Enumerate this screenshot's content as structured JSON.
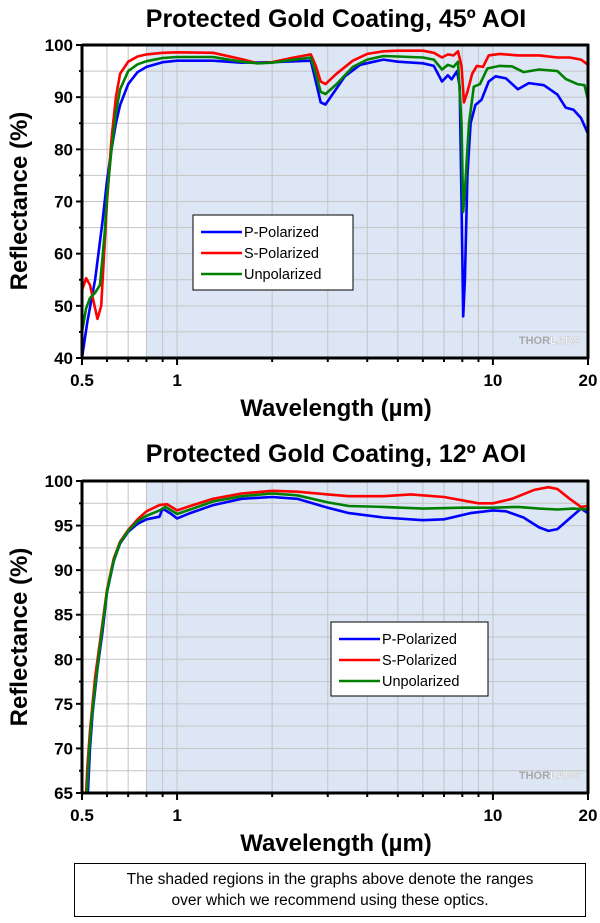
{
  "colors": {
    "shade": "#dce6f5",
    "grid": "#c4c4c4",
    "p_polarized": "#0000ff",
    "s_polarized": "#ff0000",
    "unpolarized": "#008000",
    "logo_dark": "#a9a9a9",
    "logo_light": "#c8c8c8"
  },
  "logo": {
    "part1": "THOR",
    "part2": "LABS"
  },
  "note": {
    "line1": "The shaded regions in the graphs above denote the ranges",
    "line2": "over which we recommend using these optics."
  },
  "chart_data": [
    {
      "type": "line",
      "title": "Protected Gold Coating, 45º AOI",
      "xlabel": "Wavelength (µm)",
      "ylabel": "Reflectance (%)",
      "xscale": "log",
      "xlim": [
        0.5,
        20
      ],
      "ylim": [
        40,
        100
      ],
      "xticks": [
        {
          "value": 0.5,
          "label": "0.5"
        },
        {
          "value": 1,
          "label": "1"
        },
        {
          "value": 10,
          "label": "10"
        },
        {
          "value": 20,
          "label": "20"
        }
      ],
      "yticks": [
        40,
        50,
        60,
        70,
        80,
        90,
        100
      ],
      "y_minor_step": 5,
      "grid": true,
      "shaded_range": [
        0.8,
        20
      ],
      "legend": {
        "placement": "center-left",
        "entries": [
          "P-Polarized",
          "S-Polarized",
          "Unpolarized"
        ]
      },
      "series": [
        {
          "name": "P-Polarized",
          "color": "#0000ff",
          "points": [
            [
              0.5,
              40
            ],
            [
              0.52,
              47
            ],
            [
              0.55,
              55
            ],
            [
              0.58,
              66
            ],
            [
              0.6,
              74
            ],
            [
              0.62,
              80
            ],
            [
              0.64,
              85
            ],
            [
              0.66,
              88.5
            ],
            [
              0.7,
              92.5
            ],
            [
              0.75,
              94.8
            ],
            [
              0.8,
              95.8
            ],
            [
              0.9,
              96.7
            ],
            [
              1.0,
              97.0
            ],
            [
              1.3,
              97.0
            ],
            [
              1.6,
              96.6
            ],
            [
              2.0,
              96.7
            ],
            [
              2.4,
              96.9
            ],
            [
              2.65,
              97.0
            ],
            [
              2.75,
              93
            ],
            [
              2.85,
              89
            ],
            [
              2.95,
              88.6
            ],
            [
              3.1,
              90.5
            ],
            [
              3.4,
              94
            ],
            [
              3.8,
              96.2
            ],
            [
              4.2,
              96.8
            ],
            [
              4.5,
              97.2
            ],
            [
              5.0,
              96.8
            ],
            [
              6.0,
              96.5
            ],
            [
              6.5,
              96
            ],
            [
              6.9,
              93
            ],
            [
              7.2,
              94.2
            ],
            [
              7.4,
              93.4
            ],
            [
              7.7,
              95
            ],
            [
              7.85,
              92
            ],
            [
              7.95,
              70
            ],
            [
              8.05,
              48
            ],
            [
              8.15,
              55
            ],
            [
              8.3,
              75
            ],
            [
              8.5,
              85
            ],
            [
              8.8,
              88.5
            ],
            [
              9.2,
              89.5
            ],
            [
              9.7,
              93
            ],
            [
              10.2,
              94
            ],
            [
              11,
              93.6
            ],
            [
              12,
              91.5
            ],
            [
              13,
              92.7
            ],
            [
              14.5,
              92.3
            ],
            [
              16,
              90.5
            ],
            [
              17,
              88
            ],
            [
              18,
              87.6
            ],
            [
              19,
              86
            ],
            [
              20,
              83
            ]
          ]
        },
        {
          "name": "S-Polarized",
          "color": "#ff0000",
          "points": [
            [
              0.5,
              53
            ],
            [
              0.515,
              55.3
            ],
            [
              0.53,
              54
            ],
            [
              0.55,
              49.5
            ],
            [
              0.56,
              47.5
            ],
            [
              0.575,
              50
            ],
            [
              0.59,
              62
            ],
            [
              0.6,
              70
            ],
            [
              0.62,
              82
            ],
            [
              0.64,
              90
            ],
            [
              0.66,
              94.5
            ],
            [
              0.7,
              96.8
            ],
            [
              0.75,
              97.8
            ],
            [
              0.8,
              98.2
            ],
            [
              0.9,
              98.5
            ],
            [
              1.0,
              98.6
            ],
            [
              1.3,
              98.5
            ],
            [
              1.6,
              97.3
            ],
            [
              1.8,
              96.5
            ],
            [
              2.0,
              96.7
            ],
            [
              2.3,
              97.5
            ],
            [
              2.65,
              98.2
            ],
            [
              2.75,
              96
            ],
            [
              2.85,
              93
            ],
            [
              2.95,
              92.5
            ],
            [
              3.2,
              94.5
            ],
            [
              3.6,
              97
            ],
            [
              4.0,
              98.3
            ],
            [
              4.5,
              98.8
            ],
            [
              5,
              98.9
            ],
            [
              6,
              98.9
            ],
            [
              6.5,
              98.5
            ],
            [
              6.9,
              97.6
            ],
            [
              7.2,
              98.2
            ],
            [
              7.5,
              98
            ],
            [
              7.75,
              98.8
            ],
            [
              7.95,
              96
            ],
            [
              8.1,
              89
            ],
            [
              8.3,
              91
            ],
            [
              8.6,
              94.5
            ],
            [
              8.9,
              96
            ],
            [
              9.3,
              95.8
            ],
            [
              9.7,
              98
            ],
            [
              10.5,
              98.3
            ],
            [
              12,
              98
            ],
            [
              14,
              98
            ],
            [
              16,
              97.6
            ],
            [
              17.5,
              97.6
            ],
            [
              19,
              97.2
            ],
            [
              20,
              96.2
            ]
          ]
        },
        {
          "name": "Unpolarized",
          "color": "#008000",
          "points": [
            [
              0.5,
              45
            ],
            [
              0.515,
              49.5
            ],
            [
              0.53,
              51.5
            ],
            [
              0.55,
              52.5
            ],
            [
              0.57,
              54
            ],
            [
              0.59,
              64
            ],
            [
              0.6,
              71
            ],
            [
              0.62,
              80
            ],
            [
              0.64,
              87
            ],
            [
              0.66,
              91.5
            ],
            [
              0.7,
              95
            ],
            [
              0.75,
              96.3
            ],
            [
              0.8,
              96.9
            ],
            [
              0.9,
              97.5
            ],
            [
              1.0,
              97.7
            ],
            [
              1.3,
              97.7
            ],
            [
              1.6,
              96.8
            ],
            [
              1.8,
              96.5
            ],
            [
              2.0,
              96.6
            ],
            [
              2.3,
              97.1
            ],
            [
              2.65,
              97.6
            ],
            [
              2.75,
              94.5
            ],
            [
              2.85,
              91
            ],
            [
              2.95,
              90.6
            ],
            [
              3.2,
              92.5
            ],
            [
              3.6,
              95.8
            ],
            [
              4.0,
              97.2
            ],
            [
              4.5,
              97.9
            ],
            [
              5,
              97.8
            ],
            [
              6,
              97.6
            ],
            [
              6.5,
              97.2
            ],
            [
              6.9,
              95.3
            ],
            [
              7.2,
              96.2
            ],
            [
              7.5,
              95.8
            ],
            [
              7.75,
              96.8
            ],
            [
              7.95,
              85
            ],
            [
              8.05,
              68
            ],
            [
              8.15,
              72
            ],
            [
              8.4,
              85
            ],
            [
              8.7,
              92
            ],
            [
              9.1,
              92.5
            ],
            [
              9.6,
              95.5
            ],
            [
              10.5,
              96
            ],
            [
              11.5,
              95.9
            ],
            [
              12.5,
              94.8
            ],
            [
              14,
              95.3
            ],
            [
              16,
              95
            ],
            [
              17,
              93.5
            ],
            [
              18.5,
              92.5
            ],
            [
              19.5,
              92.3
            ],
            [
              20,
              89.5
            ]
          ]
        }
      ]
    },
    {
      "type": "line",
      "title": "Protected Gold Coating, 12º AOI",
      "xlabel": "Wavelength (µm)",
      "ylabel": "Reflectance (%)",
      "xscale": "log",
      "xlim": [
        0.5,
        20
      ],
      "ylim": [
        65,
        100
      ],
      "xticks": [
        {
          "value": 0.5,
          "label": "0.5"
        },
        {
          "value": 1,
          "label": "1"
        },
        {
          "value": 10,
          "label": "10"
        },
        {
          "value": 20,
          "label": "20"
        }
      ],
      "yticks": [
        65,
        70,
        75,
        80,
        85,
        90,
        95,
        100
      ],
      "y_minor_step": 2.5,
      "grid": true,
      "shaded_range": [
        0.8,
        20
      ],
      "legend": {
        "placement": "center-right",
        "entries": [
          "P-Polarized",
          "S-Polarized",
          "Unpolarized"
        ]
      },
      "series": [
        {
          "name": "P-Polarized",
          "color": "#0000ff",
          "points": [
            [
              0.522,
              65
            ],
            [
              0.53,
              70
            ],
            [
              0.54,
              74
            ],
            [
              0.56,
              79
            ],
            [
              0.58,
              83
            ],
            [
              0.6,
              87.5
            ],
            [
              0.63,
              91
            ],
            [
              0.66,
              93
            ],
            [
              0.7,
              94.3
            ],
            [
              0.75,
              95.2
            ],
            [
              0.8,
              95.7
            ],
            [
              0.88,
              96.0
            ],
            [
              0.9,
              96.9
            ],
            [
              0.95,
              96.4
            ],
            [
              1.0,
              95.8
            ],
            [
              1.1,
              96.4
            ],
            [
              1.3,
              97.3
            ],
            [
              1.6,
              98.0
            ],
            [
              2.0,
              98.2
            ],
            [
              2.4,
              98.0
            ],
            [
              3.0,
              97.0
            ],
            [
              3.5,
              96.4
            ],
            [
              4.5,
              95.9
            ],
            [
              6,
              95.6
            ],
            [
              7,
              95.7
            ],
            [
              8.5,
              96.4
            ],
            [
              10,
              96.7
            ],
            [
              11,
              96.6
            ],
            [
              12.5,
              95.9
            ],
            [
              14,
              94.8
            ],
            [
              15,
              94.4
            ],
            [
              16,
              94.6
            ],
            [
              17.5,
              95.8
            ],
            [
              19,
              96.9
            ],
            [
              20,
              96.4
            ]
          ]
        },
        {
          "name": "S-Polarized",
          "color": "#ff0000",
          "points": [
            [
              0.515,
              65
            ],
            [
              0.52,
              68
            ],
            [
              0.53,
              72
            ],
            [
              0.55,
              78
            ],
            [
              0.57,
              82
            ],
            [
              0.6,
              87.8
            ],
            [
              0.63,
              91.3
            ],
            [
              0.66,
              93.2
            ],
            [
              0.7,
              94.5
            ],
            [
              0.75,
              95.7
            ],
            [
              0.8,
              96.6
            ],
            [
              0.88,
              97.3
            ],
            [
              0.93,
              97.4
            ],
            [
              1.0,
              96.7
            ],
            [
              1.1,
              97.2
            ],
            [
              1.3,
              98.0
            ],
            [
              1.6,
              98.6
            ],
            [
              2.0,
              98.9
            ],
            [
              2.4,
              98.8
            ],
            [
              3.0,
              98.5
            ],
            [
              3.5,
              98.3
            ],
            [
              4.5,
              98.3
            ],
            [
              5.5,
              98.5
            ],
            [
              7,
              98.2
            ],
            [
              9,
              97.5
            ],
            [
              10,
              97.5
            ],
            [
              11.5,
              98.0
            ],
            [
              13.5,
              99.0
            ],
            [
              15,
              99.3
            ],
            [
              16,
              99.1
            ],
            [
              17.5,
              98.0
            ],
            [
              19,
              97.1
            ],
            [
              20,
              97.2
            ]
          ]
        },
        {
          "name": "Unpolarized",
          "color": "#008000",
          "points": [
            [
              0.518,
              65
            ],
            [
              0.525,
              69
            ],
            [
              0.535,
              73
            ],
            [
              0.55,
              77
            ],
            [
              0.57,
              81.5
            ],
            [
              0.6,
              87.6
            ],
            [
              0.63,
              91.1
            ],
            [
              0.66,
              93.1
            ],
            [
              0.7,
              94.4
            ],
            [
              0.75,
              95.5
            ],
            [
              0.8,
              96.1
            ],
            [
              0.88,
              96.7
            ],
            [
              0.92,
              97.1
            ],
            [
              1.0,
              96.3
            ],
            [
              1.1,
              96.8
            ],
            [
              1.3,
              97.7
            ],
            [
              1.6,
              98.3
            ],
            [
              2.0,
              98.6
            ],
            [
              2.4,
              98.4
            ],
            [
              3.0,
              97.6
            ],
            [
              3.5,
              97.2
            ],
            [
              4.5,
              97.1
            ],
            [
              6,
              96.9
            ],
            [
              8,
              97.0
            ],
            [
              10,
              97.0
            ],
            [
              12,
              97.1
            ],
            [
              14,
              96.9
            ],
            [
              16,
              96.8
            ],
            [
              18,
              96.9
            ],
            [
              20,
              96.8
            ]
          ]
        }
      ]
    }
  ]
}
